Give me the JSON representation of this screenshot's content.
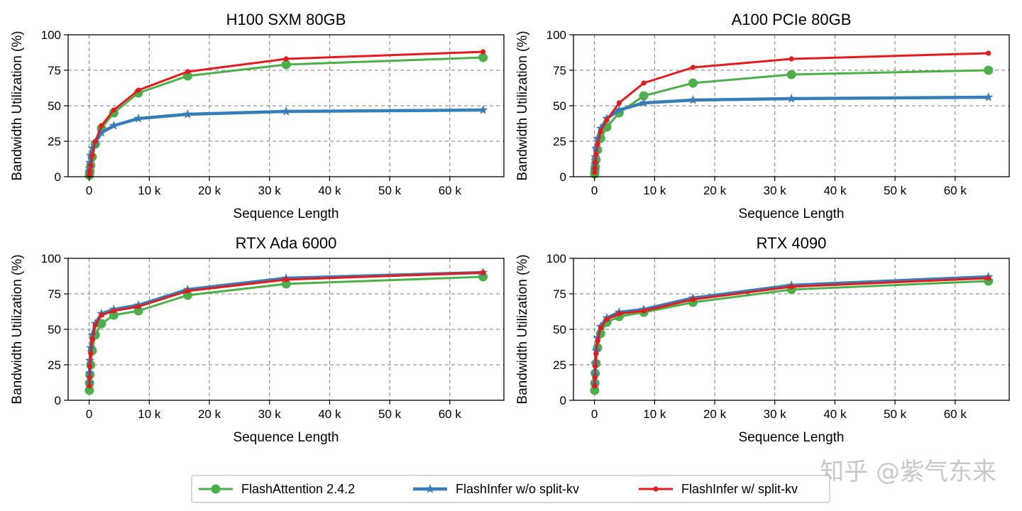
{
  "watermark": "知乎 @紫气东来",
  "legend": [
    {
      "label": "FlashAttention 2.4.2",
      "color": "#4daf4a",
      "marker": "circle"
    },
    {
      "label": "FlashInfer w/o split-kv",
      "color": "#377eb8",
      "marker": "star"
    },
    {
      "label": "FlashInfer w/ split-kv",
      "color": "#e41a1c",
      "marker": "dot"
    }
  ],
  "chart_data": [
    {
      "type": "line",
      "title": "H100 SXM 80GB",
      "xlabel": "Sequence Length",
      "ylabel": "Bandwidth Utilization (%)",
      "xlim": [
        -3500,
        69000
      ],
      "ylim": [
        0,
        100
      ],
      "xticks": [
        0,
        10000,
        20000,
        30000,
        40000,
        50000,
        60000
      ],
      "xtick_labels": [
        "0",
        "10 k",
        "20 k",
        "30 k",
        "40 k",
        "50 k",
        "60 k"
      ],
      "yticks": [
        0,
        25,
        50,
        75,
        100
      ],
      "ytick_labels": [
        "0",
        "25",
        "50",
        "75",
        "100"
      ],
      "grid": true,
      "x": [
        32,
        64,
        128,
        256,
        512,
        1024,
        2048,
        4096,
        8192,
        16384,
        32768,
        65536
      ],
      "series": [
        {
          "name": "FlashAttention 2.4.2",
          "color": "#4daf4a",
          "marker": "circle",
          "values": [
            1,
            2,
            4,
            8,
            14,
            23,
            34,
            45,
            59,
            71,
            79,
            84
          ]
        },
        {
          "name": "FlashInfer w/o split-kv",
          "color": "#377eb8",
          "marker": "star",
          "values": [
            3,
            6,
            10,
            15,
            20,
            24,
            31,
            36,
            41,
            44,
            46,
            47
          ]
        },
        {
          "name": "FlashInfer w/ split-kv",
          "color": "#e41a1c",
          "marker": "dot",
          "values": [
            1,
            2,
            4,
            8,
            15,
            25,
            36,
            47,
            61,
            74,
            83,
            88
          ]
        }
      ]
    },
    {
      "type": "line",
      "title": "A100 PCIe 80GB",
      "xlabel": "Sequence Length",
      "ylabel": "Bandwidth Utilization (%)",
      "xlim": [
        -3500,
        69000
      ],
      "ylim": [
        0,
        100
      ],
      "xticks": [
        0,
        10000,
        20000,
        30000,
        40000,
        50000,
        60000
      ],
      "xtick_labels": [
        "0",
        "10 k",
        "20 k",
        "30 k",
        "40 k",
        "50 k",
        "60 k"
      ],
      "yticks": [
        0,
        25,
        50,
        75,
        100
      ],
      "ytick_labels": [
        "0",
        "25",
        "50",
        "75",
        "100"
      ],
      "grid": true,
      "x": [
        32,
        64,
        128,
        256,
        512,
        1024,
        2048,
        4096,
        8192,
        16384,
        32768,
        65536
      ],
      "series": [
        {
          "name": "FlashAttention 2.4.2",
          "color": "#4daf4a",
          "marker": "circle",
          "values": [
            2,
            4,
            7,
            12,
            19,
            27,
            35,
            45,
            57,
            66,
            72,
            75
          ]
        },
        {
          "name": "FlashInfer w/o split-kv",
          "color": "#377eb8",
          "marker": "star",
          "values": [
            5,
            9,
            14,
            20,
            27,
            34,
            41,
            47,
            52,
            54,
            55,
            56
          ]
        },
        {
          "name": "FlashInfer w/ split-kv",
          "color": "#e41a1c",
          "marker": "dot",
          "values": [
            3,
            6,
            10,
            16,
            23,
            32,
            40,
            52,
            66,
            77,
            83,
            87
          ]
        }
      ]
    },
    {
      "type": "line",
      "title": "RTX Ada 6000",
      "xlabel": "Sequence Length",
      "ylabel": "Bandwidth Utilization (%)",
      "xlim": [
        -3500,
        69000
      ],
      "ylim": [
        0,
        100
      ],
      "xticks": [
        0,
        10000,
        20000,
        30000,
        40000,
        50000,
        60000
      ],
      "xtick_labels": [
        "0",
        "10 k",
        "20 k",
        "30 k",
        "40 k",
        "50 k",
        "60 k"
      ],
      "yticks": [
        0,
        25,
        50,
        75,
        100
      ],
      "ytick_labels": [
        "0",
        "25",
        "50",
        "75",
        "100"
      ],
      "grid": true,
      "x": [
        32,
        64,
        128,
        256,
        512,
        1024,
        2048,
        4096,
        8192,
        16384,
        32768,
        65536
      ],
      "series": [
        {
          "name": "FlashAttention 2.4.2",
          "color": "#4daf4a",
          "marker": "circle",
          "values": [
            7,
            12,
            18,
            25,
            35,
            46,
            54,
            60,
            63,
            74,
            82,
            87
          ]
        },
        {
          "name": "FlashInfer w/o split-kv",
          "color": "#377eb8",
          "marker": "star",
          "values": [
            12,
            19,
            28,
            37,
            46,
            54,
            61,
            64,
            67,
            78,
            86,
            90
          ]
        },
        {
          "name": "FlashInfer w/ split-kv",
          "color": "#e41a1c",
          "marker": "dot",
          "values": [
            10,
            16,
            24,
            33,
            43,
            53,
            60,
            63,
            66,
            77,
            85,
            90
          ]
        }
      ]
    },
    {
      "type": "line",
      "title": "RTX 4090",
      "xlabel": "Sequence Length",
      "ylabel": "Bandwidth Utilization (%)",
      "xlim": [
        -3500,
        69000
      ],
      "ylim": [
        0,
        100
      ],
      "xticks": [
        0,
        10000,
        20000,
        30000,
        40000,
        50000,
        60000
      ],
      "xtick_labels": [
        "0",
        "10 k",
        "20 k",
        "30 k",
        "40 k",
        "50 k",
        "60 k"
      ],
      "yticks": [
        0,
        25,
        50,
        75,
        100
      ],
      "ytick_labels": [
        "0",
        "25",
        "50",
        "75",
        "100"
      ],
      "grid": true,
      "x": [
        32,
        64,
        128,
        256,
        512,
        1024,
        2048,
        4096,
        8192,
        16384,
        32768,
        65536
      ],
      "series": [
        {
          "name": "FlashAttention 2.4.2",
          "color": "#4daf4a",
          "marker": "circle",
          "values": [
            7,
            12,
            19,
            26,
            37,
            47,
            55,
            59,
            62,
            69,
            78,
            84
          ]
        },
        {
          "name": "FlashInfer w/o split-kv",
          "color": "#377eb8",
          "marker": "star",
          "values": [
            11,
            18,
            26,
            35,
            44,
            52,
            58,
            62,
            64,
            72,
            81,
            87
          ]
        },
        {
          "name": "FlashInfer w/ split-kv",
          "color": "#e41a1c",
          "marker": "dot",
          "values": [
            10,
            16,
            24,
            33,
            42,
            51,
            57,
            61,
            63,
            71,
            80,
            86
          ]
        }
      ]
    }
  ]
}
